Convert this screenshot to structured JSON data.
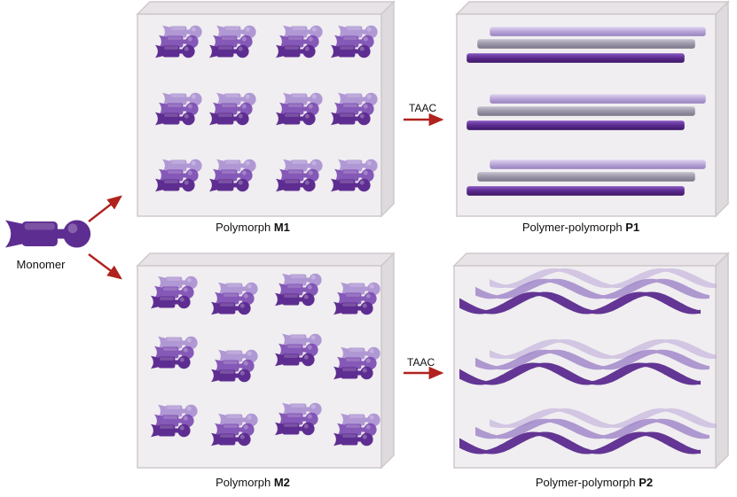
{
  "colors": {
    "box_face": "#f0eef0",
    "box_side": "#dedadd",
    "box_edge": "#cfc8cd",
    "monomer_dark": "#5e2d91",
    "monomer_mid": "#7d4db3",
    "monomer_light": "#a68ad0",
    "arrow": "#b0221e",
    "rod_dark": "#5b2a8e",
    "rod_gray": "#9c97a8",
    "rod_light": "#b9a6d8"
  },
  "labels": {
    "monomer": "Monomer",
    "m1_prefix": "Polymorph ",
    "m1_bold": "M1",
    "m2_prefix": "Polymorph ",
    "m2_bold": "M2",
    "p1_prefix": "Polymer-polymorph ",
    "p1_bold": "P1",
    "p2_prefix": "Polymer-polymorph ",
    "p2_bold": "P2",
    "taac_top": "TAAC",
    "taac_bottom": "TAAC"
  },
  "icons": {
    "monomer": "monomer-icon",
    "cluster": "monomer-cluster-icon",
    "rod": "polymer-rod",
    "helix": "polymer-helix"
  }
}
